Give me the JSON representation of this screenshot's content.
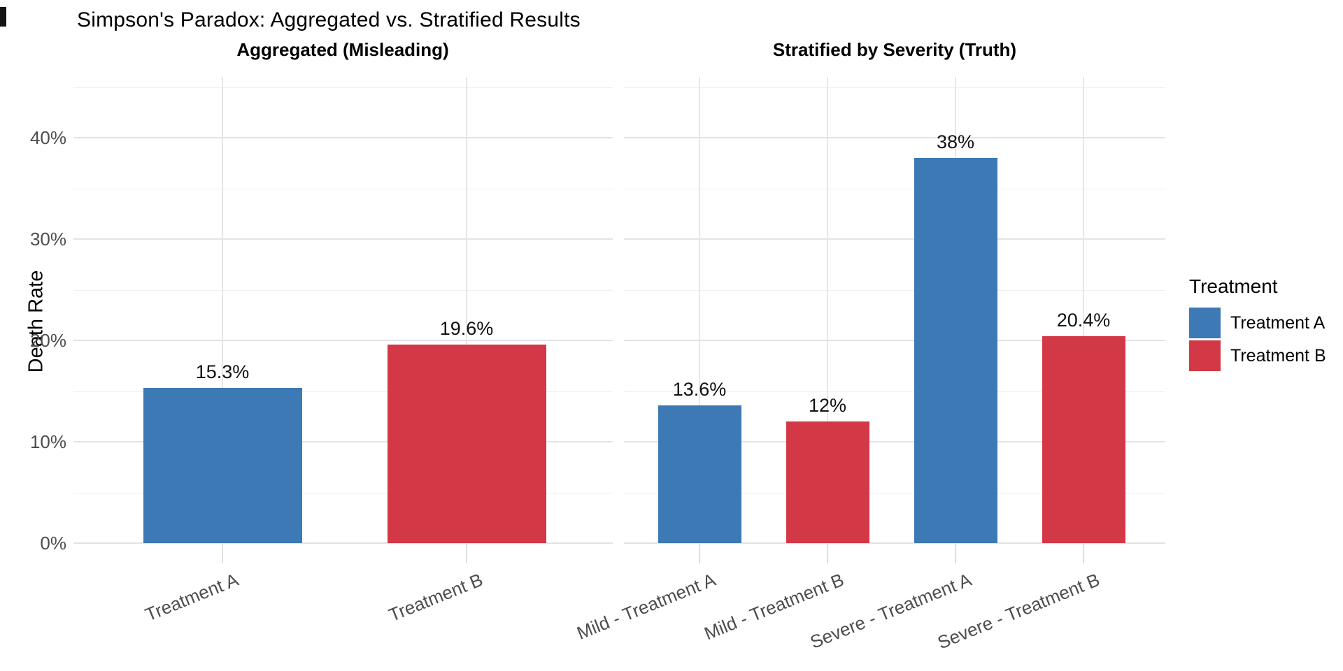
{
  "title": "Simpson's Paradox: Aggregated vs. Stratified Results",
  "y_axis": {
    "label": "Death Rate",
    "ticks": [
      {
        "label": "0%",
        "value": 0
      },
      {
        "label": "10%",
        "value": 10
      },
      {
        "label": "20%",
        "value": 20
      },
      {
        "label": "30%",
        "value": 30
      },
      {
        "label": "40%",
        "value": 40
      }
    ]
  },
  "colors": {
    "treatment_a": "#3C79B5",
    "treatment_b": "#D23845"
  },
  "legend": {
    "title": "Treatment",
    "items": [
      {
        "label": "Treatment A",
        "color": "#3C79B5"
      },
      {
        "label": "Treatment B",
        "color": "#D23845"
      }
    ]
  },
  "chart_data": [
    {
      "type": "bar",
      "title": "Aggregated (Misleading)",
      "categories": [
        "Treatment A",
        "Treatment B"
      ],
      "values": [
        15.3,
        19.6
      ],
      "value_labels": [
        "15.3%",
        "19.6%"
      ],
      "bar_colors": [
        "#3C79B5",
        "#D23845"
      ],
      "series_names": [
        "Treatment A",
        "Treatment B"
      ],
      "xlabel": "",
      "ylabel": "Death Rate",
      "ylim": [
        0,
        46
      ],
      "grid": "on",
      "legend_position": "right"
    },
    {
      "type": "bar",
      "title": "Stratified by Severity (Truth)",
      "categories": [
        "Mild - Treatment A",
        "Mild - Treatment B",
        "Severe - Treatment A",
        "Severe - Treatment B"
      ],
      "values": [
        13.6,
        12,
        38,
        20.4
      ],
      "value_labels": [
        "13.6%",
        "12%",
        "38%",
        "20.4%"
      ],
      "bar_colors": [
        "#3C79B5",
        "#D23845",
        "#3C79B5",
        "#D23845"
      ],
      "series_names": [
        "Treatment A",
        "Treatment B"
      ],
      "xlabel": "",
      "ylabel": "Death Rate",
      "ylim": [
        0,
        46
      ],
      "grid": "on",
      "legend_position": "right"
    }
  ]
}
